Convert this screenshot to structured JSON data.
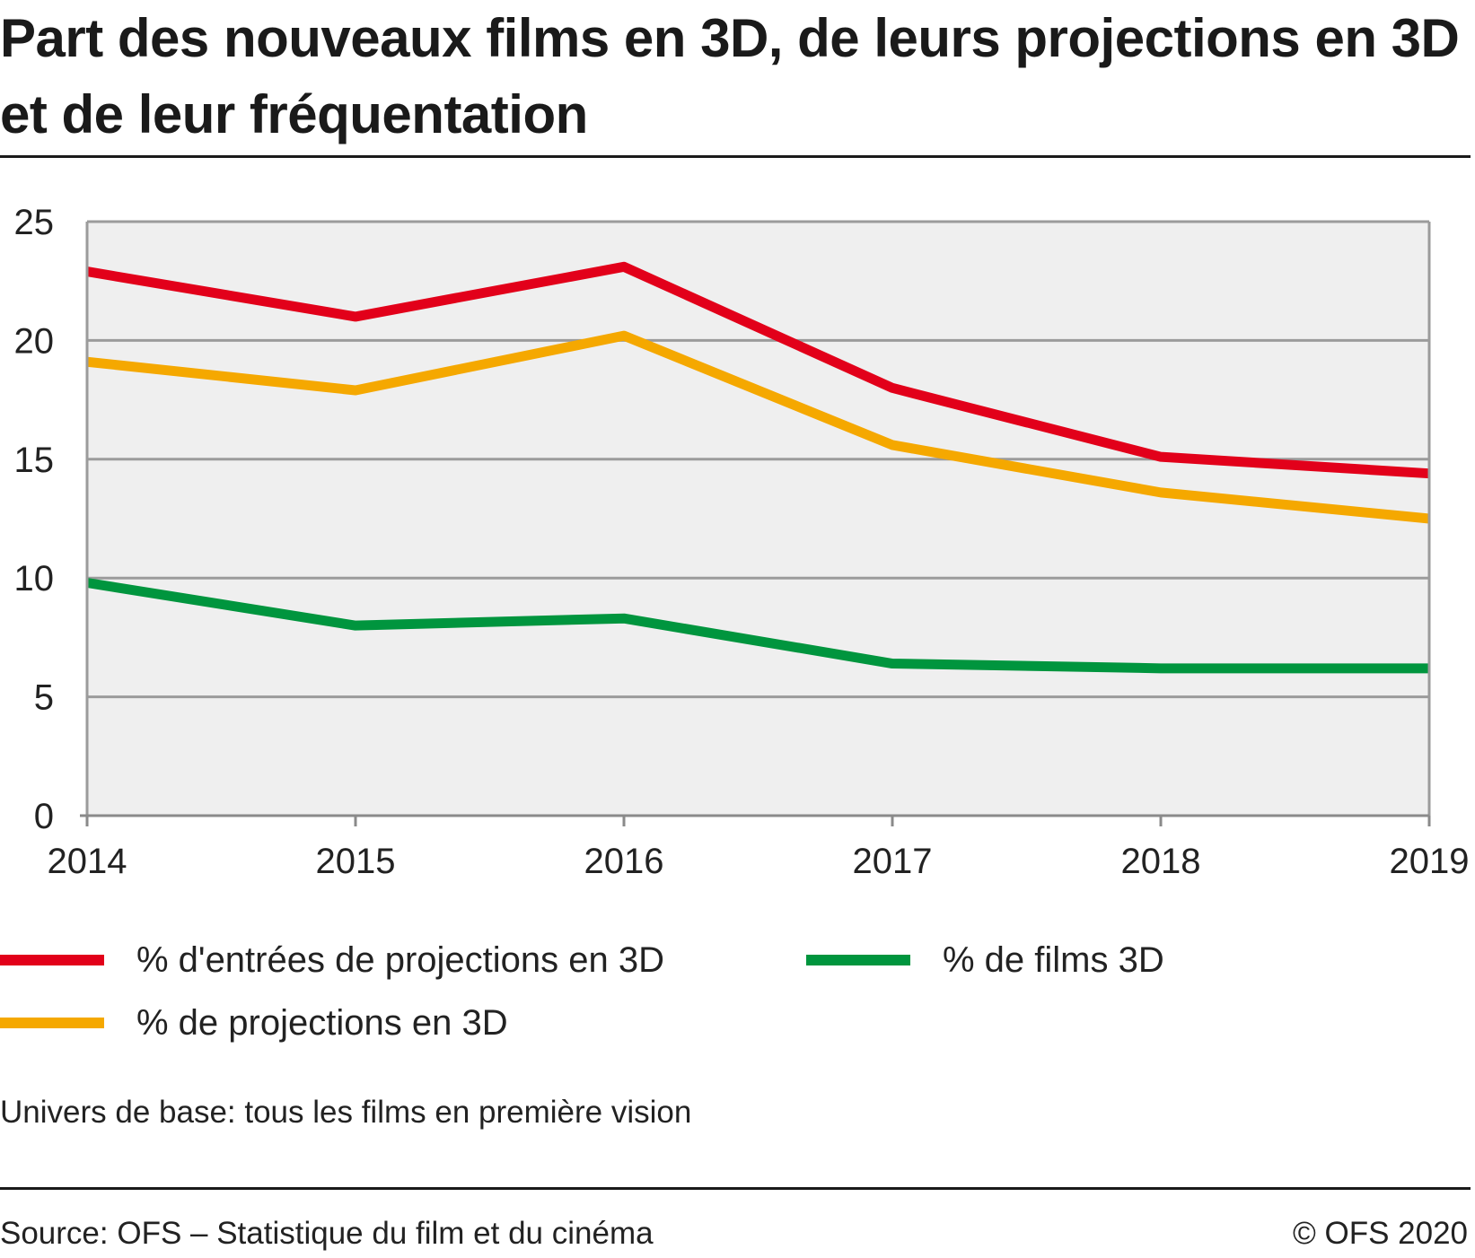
{
  "title": "Part des nouveaux films en 3D, de leurs projections en 3D et de leur fréquentation",
  "note": "Univers de base: tous les films en première vision",
  "source": "Source: OFS – Statistique du film et du cinéma",
  "copyright": "© OFS 2020",
  "chart_data": {
    "type": "line",
    "title": "Part des nouveaux films en 3D, de leurs projections en 3D et de leur fréquentation",
    "xlabel": "",
    "ylabel": "",
    "x": [
      "2014",
      "2015",
      "2016",
      "2017",
      "2018",
      "2019"
    ],
    "y_ticks": [
      "0",
      "5",
      "10",
      "15",
      "20",
      "25"
    ],
    "ylim": [
      0,
      25
    ],
    "grid": true,
    "legend_position": "bottom",
    "background_color": "#efefef",
    "series": [
      {
        "name": "% d'entrées de projections en 3D",
        "color": "#e2001a",
        "values": [
          22.9,
          21.0,
          23.1,
          18.0,
          15.1,
          14.4
        ]
      },
      {
        "name": "% de projections en 3D",
        "color": "#f5a800",
        "values": [
          19.1,
          17.9,
          20.2,
          15.6,
          13.6,
          12.5
        ]
      },
      {
        "name": "% de films 3D",
        "color": "#00953e",
        "values": [
          9.8,
          8.0,
          8.3,
          6.4,
          6.2,
          6.2
        ]
      }
    ]
  }
}
